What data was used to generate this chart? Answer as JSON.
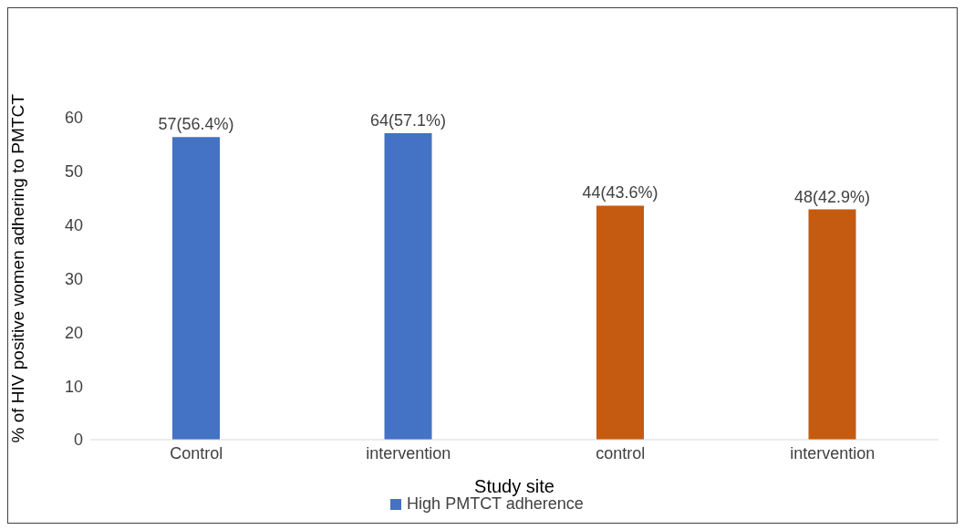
{
  "chart_data": {
    "type": "bar",
    "xlabel": "Study site",
    "ylabel": "% of HIV positive women adhering to PMTCT",
    "categories": [
      "Control",
      "intervention",
      "control",
      "intervention"
    ],
    "series": [
      {
        "name": "High PMTCT adherence",
        "color": "#4472c4",
        "values": [
          56.4,
          57.1,
          null,
          null
        ],
        "value_labels": [
          "57(56.4%)",
          "64(57.1%)",
          null,
          null
        ]
      },
      {
        "color": "#c55a11",
        "values": [
          null,
          null,
          43.6,
          42.9
        ],
        "value_labels": [
          null,
          null,
          "44(43.6%)",
          "48(42.9%)"
        ]
      }
    ],
    "ylim": [
      0,
      60
    ],
    "yticks": [
      0,
      10,
      20,
      30,
      40,
      50,
      60
    ],
    "grid": false,
    "legend": "bottom"
  }
}
